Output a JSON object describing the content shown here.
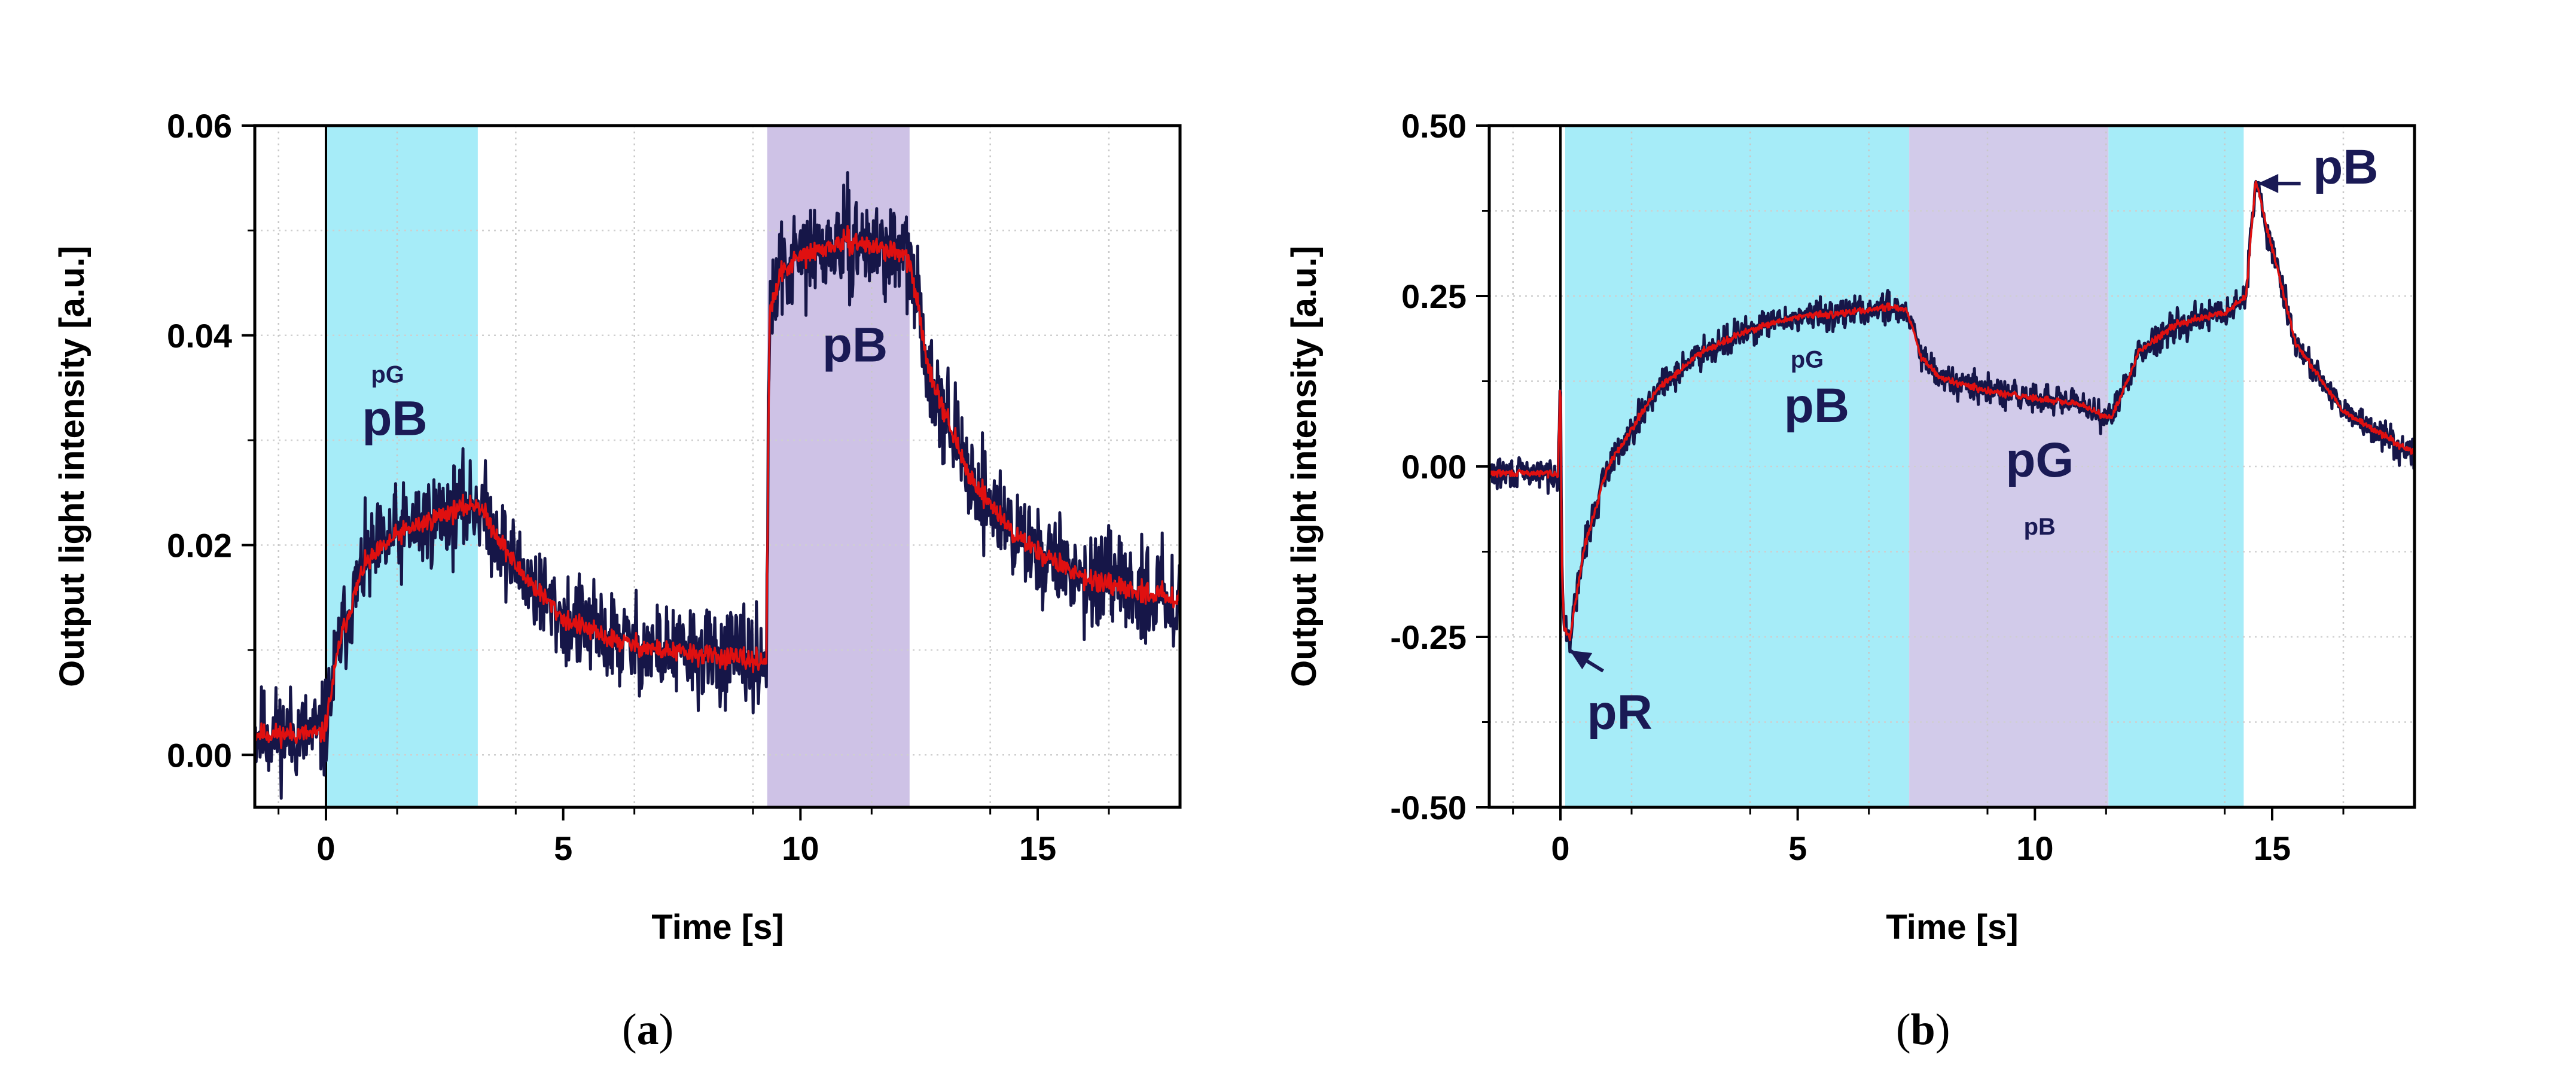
{
  "chart_data": [
    {
      "id": "a",
      "type": "line",
      "caption": "a",
      "xlabel": "Time [s]",
      "ylabel": "Output light intensity [a.u.]",
      "xlim": [
        -1.5,
        18
      ],
      "ylim": [
        -0.005,
        0.06
      ],
      "xticks": [
        0,
        5,
        10,
        15
      ],
      "xtick_labels": [
        "0",
        "5",
        "10",
        "15"
      ],
      "yticks": [
        0.0,
        0.02,
        0.04,
        0.06
      ],
      "ytick_labels": [
        "0.00",
        "0.02",
        "0.04",
        "0.06"
      ],
      "grid": true,
      "regions": [
        {
          "x0": 0,
          "x1": 3.2,
          "color": "#a6ecf8"
        },
        {
          "x0": 9.3,
          "x1": 12.3,
          "color": "#cec2e6"
        }
      ],
      "noise_amplitude": 0.0028,
      "series": [
        {
          "name": "raw",
          "color": "#161648"
        },
        {
          "name": "smoothed",
          "color": "#e01010"
        }
      ],
      "signal_points": {
        "x": [
          -1.5,
          -0.05,
          0.0,
          0.3,
          0.8,
          1.5,
          2.5,
          3.2,
          4.0,
          5.0,
          6.0,
          7.0,
          8.0,
          9.0,
          9.28,
          9.35,
          9.6,
          10.0,
          11.0,
          12.0,
          12.3,
          12.7,
          13.5,
          14.5,
          15.5,
          16.5,
          18.0
        ],
        "y": [
          0.002,
          0.002,
          0.003,
          0.011,
          0.018,
          0.021,
          0.023,
          0.024,
          0.018,
          0.013,
          0.011,
          0.01,
          0.0095,
          0.009,
          0.009,
          0.042,
          0.046,
          0.0475,
          0.049,
          0.048,
          0.047,
          0.037,
          0.027,
          0.021,
          0.018,
          0.016,
          0.015
        ]
      },
      "annotations": [
        {
          "text": "pG",
          "x": 1.3,
          "y": 0.0355
        },
        {
          "text": "pB",
          "x": 1.45,
          "y": 0.0305
        },
        {
          "text": "pB",
          "x": 11.15,
          "y": 0.0375
        }
      ]
    },
    {
      "id": "b",
      "type": "line",
      "caption": "b",
      "xlabel": "Time [s]",
      "ylabel": "Output light intensity [a.u.]",
      "xlim": [
        -1.5,
        18
      ],
      "ylim": [
        -0.5,
        0.5
      ],
      "xticks": [
        0,
        5,
        10,
        15
      ],
      "xtick_labels": [
        "0",
        "5",
        "10",
        "15"
      ],
      "yticks": [
        -0.5,
        -0.25,
        0.0,
        0.25,
        0.5
      ],
      "ytick_labels": [
        "-0.50",
        "-0.25",
        "0.00",
        "0.25",
        "0.50"
      ],
      "grid": true,
      "regions": [
        {
          "x0": 0.1,
          "x1": 7.35,
          "color": "#a6ecf8"
        },
        {
          "x0": 7.35,
          "x1": 11.55,
          "color": "#d2cbea"
        },
        {
          "x0": 11.55,
          "x1": 14.4,
          "color": "#a6ecf8"
        }
      ],
      "noise_amplitude": 0.014,
      "series": [
        {
          "name": "raw",
          "color": "#161648"
        },
        {
          "name": "smoothed",
          "color": "#e01010"
        }
      ],
      "signal_points": {
        "x": [
          -1.5,
          -0.05,
          0.0,
          0.03,
          0.08,
          0.2,
          0.5,
          1.0,
          2.0,
          3.0,
          4.0,
          5.0,
          6.0,
          7.0,
          7.3,
          7.6,
          8.0,
          9.0,
          10.0,
          11.0,
          11.6,
          11.8,
          12.2,
          13.0,
          14.0,
          14.45,
          14.65,
          15.0,
          15.5,
          16.5,
          18.0
        ],
        "y": [
          -0.01,
          -0.01,
          0.14,
          -0.15,
          -0.24,
          -0.25,
          -0.12,
          0.0,
          0.11,
          0.17,
          0.2,
          0.22,
          0.225,
          0.235,
          0.23,
          0.16,
          0.13,
          0.11,
          0.1,
          0.09,
          0.07,
          0.1,
          0.17,
          0.21,
          0.225,
          0.25,
          0.42,
          0.32,
          0.18,
          0.08,
          0.02
        ]
      },
      "annotations": [
        {
          "text": "pG",
          "x": 5.2,
          "y": 0.145
        },
        {
          "text": "pB",
          "x": 5.4,
          "y": 0.065
        },
        {
          "text": "pG",
          "x": 10.1,
          "y": -0.015
        },
        {
          "text": "pB",
          "x": 10.1,
          "y": -0.1
        },
        {
          "text": "pR",
          "x": 1.25,
          "y": -0.385
        },
        {
          "text": "pB",
          "x": 16.55,
          "y": 0.415
        }
      ],
      "arrows": [
        {
          "from": [
            0.9,
            -0.3
          ],
          "to": [
            0.2,
            -0.27
          ]
        },
        {
          "from": [
            15.6,
            0.415
          ],
          "to": [
            14.7,
            0.415
          ]
        }
      ]
    }
  ]
}
